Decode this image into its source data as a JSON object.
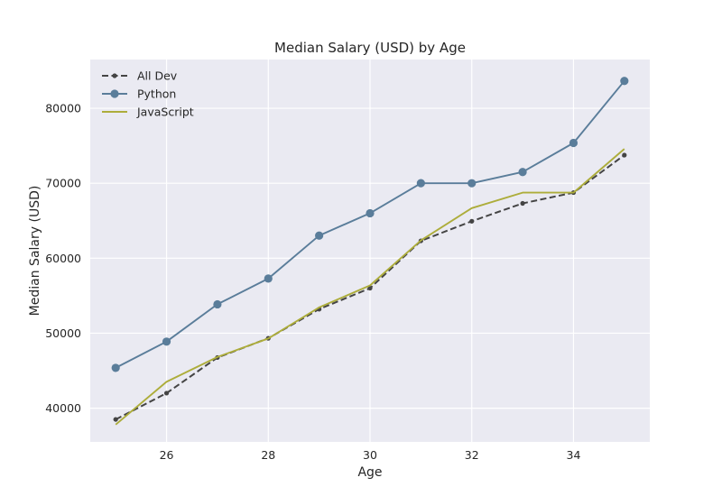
{
  "chart_data": {
    "type": "line",
    "title": "Median Salary (USD) by Age",
    "xlabel": "Age",
    "ylabel": "Median Salary (USD)",
    "x": [
      25,
      26,
      27,
      28,
      29,
      30,
      31,
      32,
      33,
      34,
      35
    ],
    "xlim": [
      24.5,
      35.5
    ],
    "ylim": [
      35500,
      86500
    ],
    "xticks": [
      26,
      28,
      30,
      32,
      34
    ],
    "yticks": [
      40000,
      50000,
      60000,
      70000,
      80000
    ],
    "grid": true,
    "legend_position": "upper-left",
    "background_color": "#eaeaf2",
    "series": [
      {
        "name": "All Dev",
        "values": [
          38496,
          42000,
          46752,
          49320,
          53200,
          56000,
          62316,
          64928,
          67317,
          68748,
          73752
        ],
        "color": "#444444",
        "style": "dashed",
        "marker": "dot"
      },
      {
        "name": "Python",
        "values": [
          45372,
          48876,
          53850,
          57287,
          63016,
          65998,
          70003,
          70000,
          71496,
          75370,
          83640
        ],
        "color": "#5a7d9a",
        "style": "solid",
        "marker": "circle"
      },
      {
        "name": "JavaScript",
        "values": [
          37810,
          43515,
          46823,
          49293,
          53437,
          56373,
          62375,
          66674,
          68745,
          68746,
          74583
        ],
        "color": "#adad3b",
        "style": "solid",
        "marker": "none"
      }
    ]
  }
}
